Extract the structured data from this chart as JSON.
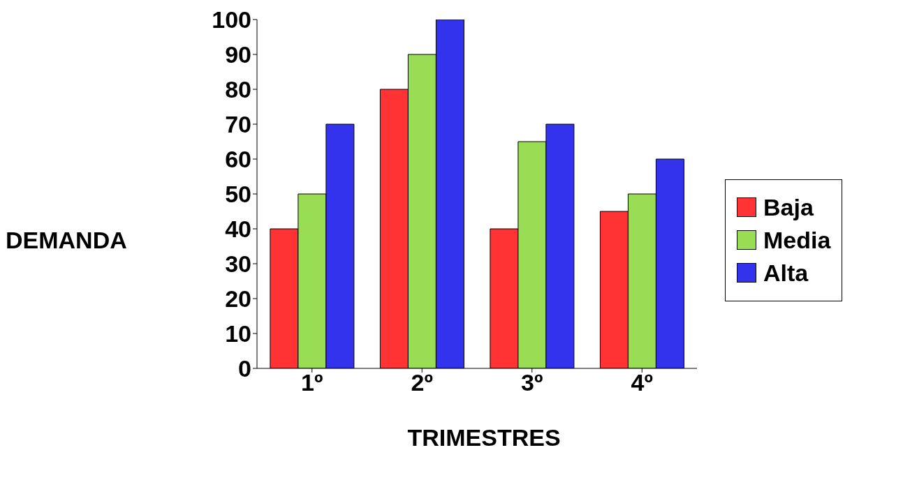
{
  "chart_data": {
    "type": "bar",
    "xlabel": "TRIMESTRES",
    "ylabel": "DEMANDA",
    "categories": [
      "1º",
      "2º",
      "3º",
      "4º"
    ],
    "series": [
      {
        "name": "Baja",
        "color": "#ff3333",
        "values": [
          40,
          80,
          40,
          45
        ]
      },
      {
        "name": "Media",
        "color": "#99dd55",
        "values": [
          50,
          90,
          65,
          50
        ]
      },
      {
        "name": "Alta",
        "color": "#3333ee",
        "values": [
          70,
          100,
          70,
          60
        ]
      }
    ],
    "ylim": [
      0,
      100
    ],
    "yticks": [
      0,
      10,
      20,
      30,
      40,
      50,
      60,
      70,
      80,
      90,
      100
    ],
    "grid": false,
    "legend": "right"
  }
}
